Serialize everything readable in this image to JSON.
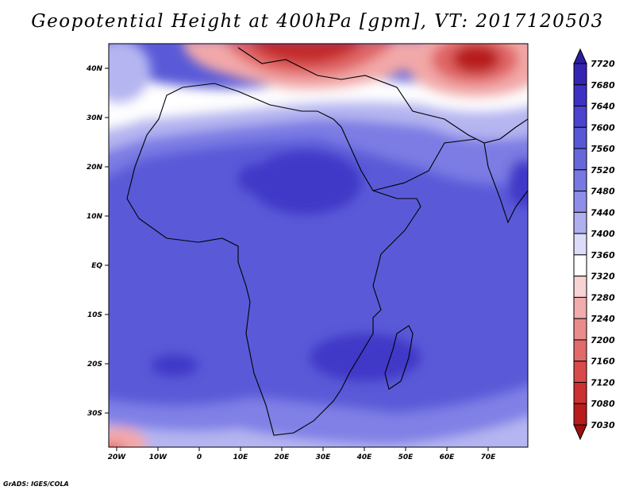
{
  "title": "Geopotential Height at 400hPa [gpm], VT: 2017120503",
  "footer": "GrADS: IGES/COLA",
  "colors": {
    "deep_blue": "#3a34c4",
    "mid_blue": "#5a5ad8",
    "light_blue": "#8080e6",
    "pale_blue": "#b6b6f2",
    "white": "#ffffff",
    "pale_red": "#f7c2c2",
    "mid_red": "#e46a6a",
    "deep_red": "#b81c1c"
  },
  "map": {
    "lon_labels": [
      "20W",
      "10W",
      "0",
      "10E",
      "20E",
      "30E",
      "40E",
      "50E",
      "60E",
      "70E"
    ],
    "lat_labels": [
      "40N",
      "30N",
      "20N",
      "10N",
      "EQ",
      "10S",
      "20S",
      "30S"
    ]
  },
  "colorbar": {
    "labels": [
      "7720",
      "7680",
      "7640",
      "7600",
      "7560",
      "7520",
      "7480",
      "7440",
      "7400",
      "7360",
      "7320",
      "7280",
      "7240",
      "7200",
      "7160",
      "7120",
      "7080",
      "7030"
    ],
    "colors": [
      "#2a1da0",
      "#3424b3",
      "#3d31c4",
      "#4a44cf",
      "#5758d6",
      "#6767dc",
      "#7878e2",
      "#8e8ee8",
      "#b0b0f0",
      "#dcdcfa",
      "#ffffff",
      "#f8d3d3",
      "#f2acac",
      "#ea8c8c",
      "#e26a6a",
      "#da4a4a",
      "#cc3030",
      "#b81c1c",
      "#9c1010"
    ]
  }
}
